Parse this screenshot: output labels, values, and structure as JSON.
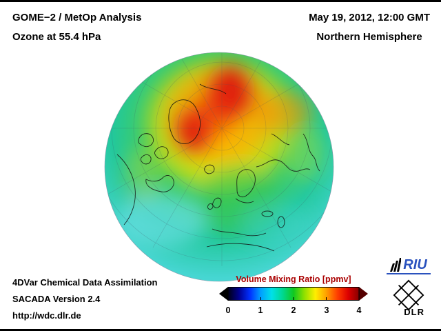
{
  "header": {
    "title": "GOME−2 / MetOp Analysis",
    "subtitle": "Ozone at 55.4 hPa",
    "datetime": "May 19, 2012, 12:00 GMT",
    "region": "Northern Hemisphere"
  },
  "footer": {
    "line1": "4DVar Chemical Data Assimilation",
    "line2": "SACADA Version 2.4",
    "line3": "http://wdc.dlr.de"
  },
  "colorbar": {
    "title": "Volume Mixing Ratio [ppmv]",
    "title_color": "#aa0000",
    "ticks": [
      "0",
      "1",
      "2",
      "3",
      "4"
    ],
    "gradient": [
      "#000014",
      "#000090",
      "#0030ff",
      "#00a0ff",
      "#00e0e8",
      "#00d890",
      "#10c820",
      "#90e000",
      "#ffee00",
      "#ffa000",
      "#ff4000",
      "#dd0000",
      "#880000"
    ],
    "left_arrow_color": "#000000",
    "right_arrow_color": "#550000"
  },
  "logos": {
    "riu_label": "RIU",
    "dlr_label": "DLR"
  },
  "chart_data": {
    "type": "heatmap",
    "title": "GOME−2 / MetOp Analysis — Ozone at 55.4 hPa",
    "datetime": "May 19, 2012, 12:00 GMT",
    "region": "Northern Hemisphere",
    "projection": "orthographic globe, polar (Arctic-centered) view",
    "colorbar_label": "Volume Mixing Ratio [ppmv]",
    "colorbar_range": [
      0,
      4
    ],
    "colorbar_ticks": [
      0,
      1,
      2,
      3,
      4
    ],
    "pattern": "High ozone mixing ratios (3–4 ppmv, red/orange) over the Arctic polar cap with red maxima near the pole and over Greenland; ~2 ppmv (green/yellow) over mid-latitudes; 1–1.5 ppmv (cyan) toward subtropical rim"
  }
}
